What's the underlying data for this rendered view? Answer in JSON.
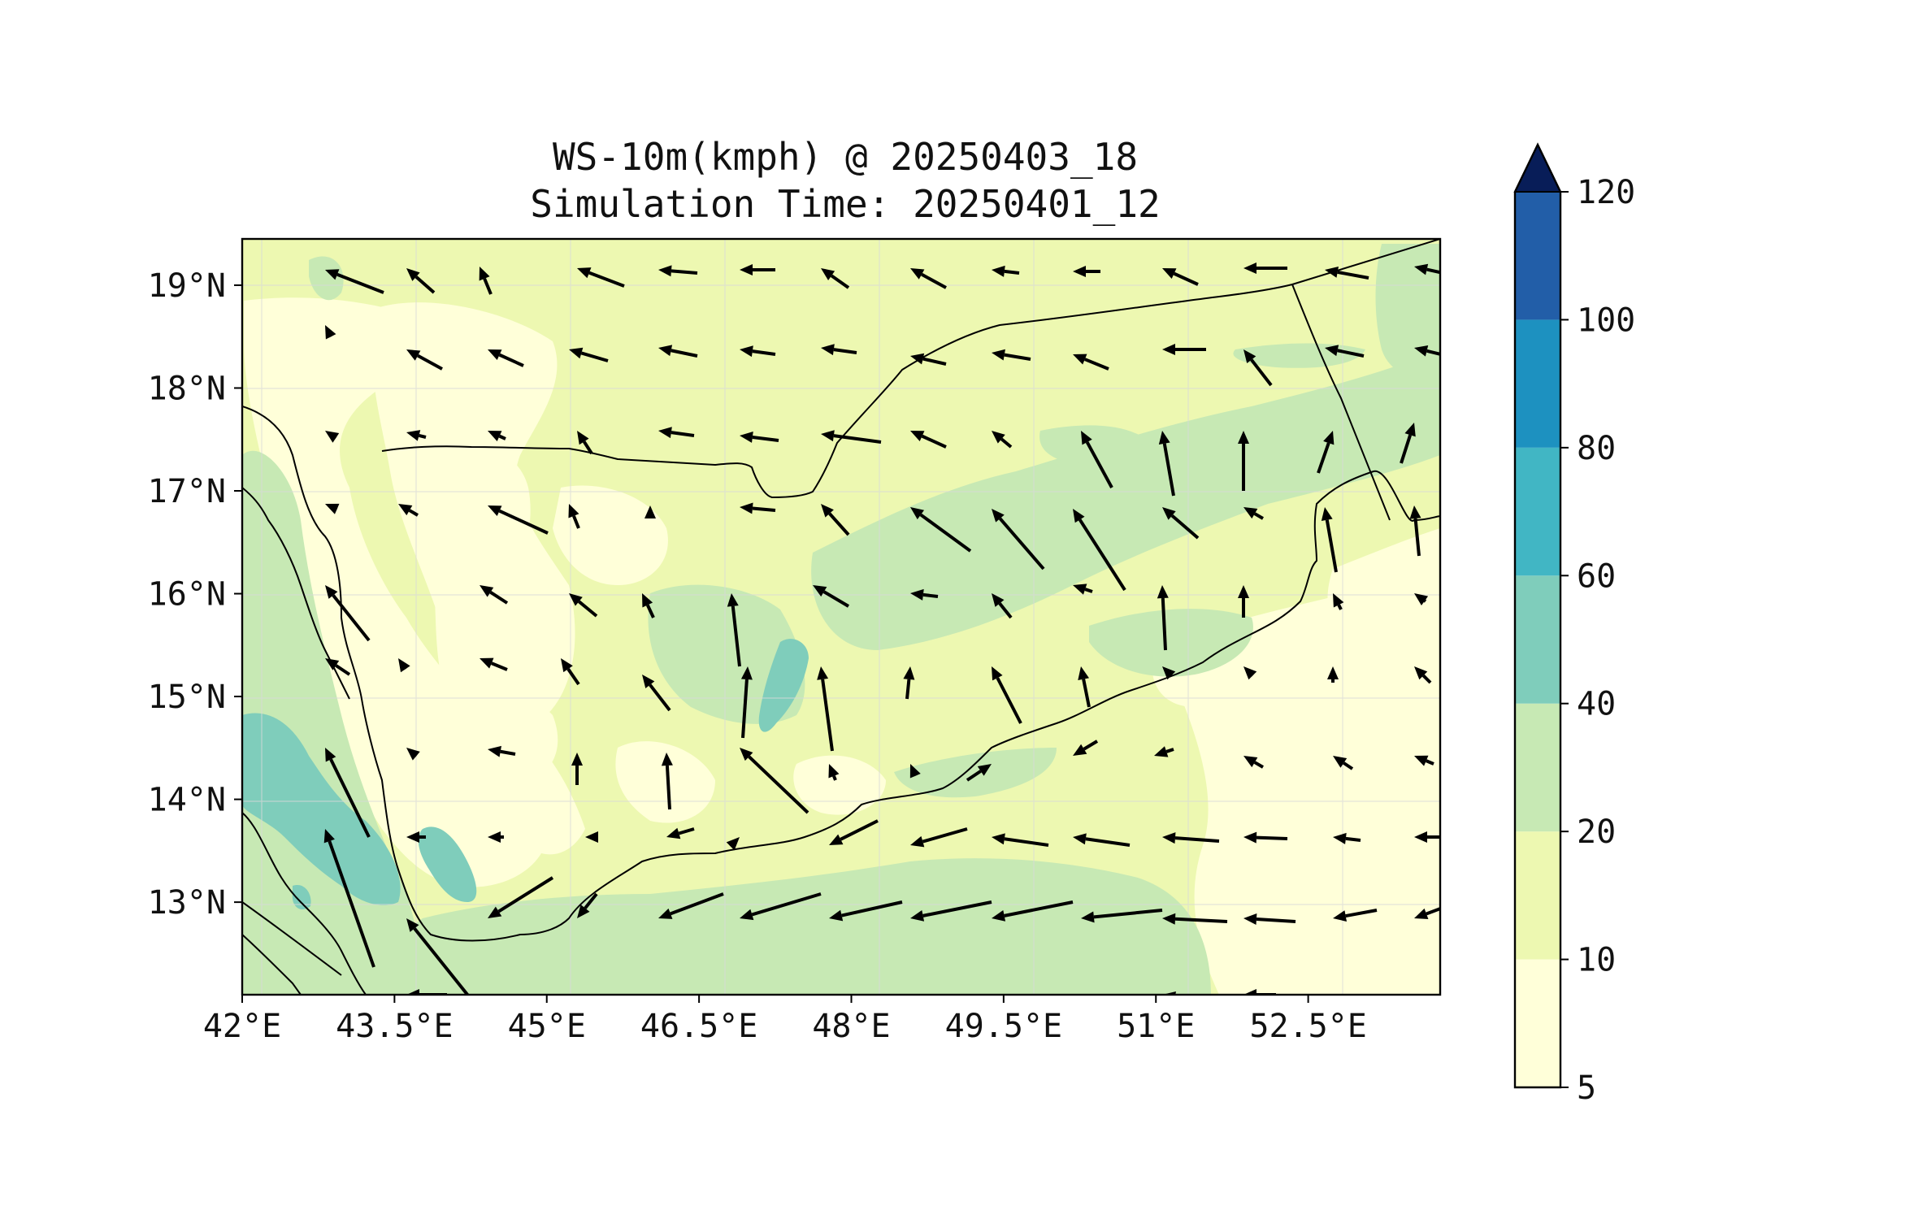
{
  "figure": {
    "title_line1": "WS-10m(kmph) @ 20250403_18",
    "title_line2": "Simulation Time: 20250401_12"
  },
  "map": {
    "lon_range": [
      42.0,
      53.8
    ],
    "lat_range": [
      12.1,
      19.45
    ],
    "x_ticks": [
      "42°E",
      "43.5°E",
      "45°E",
      "46.5°E",
      "48°E",
      "49.5°E",
      "51°E",
      "52.5°E"
    ],
    "x_tick_values": [
      42.0,
      43.5,
      45.0,
      46.5,
      48.0,
      49.5,
      51.0,
      52.5
    ],
    "y_ticks": [
      "19°N",
      "18°N",
      "17°N",
      "16°N",
      "15°N",
      "14°N",
      "13°N"
    ],
    "y_tick_values": [
      19,
      18,
      17,
      16,
      15,
      14,
      13
    ],
    "gridlines": true
  },
  "colorbar": {
    "labels": [
      "5",
      "10",
      "20",
      "40",
      "60",
      "80",
      "100",
      "120"
    ],
    "levels": [
      5,
      10,
      20,
      40,
      60,
      80,
      100,
      120
    ],
    "colors": [
      "#ffffd9",
      "#edf8b1",
      "#c7e9b4",
      "#7fcdbb",
      "#41b6c4",
      "#1d91c0",
      "#225ea8",
      "#253494"
    ],
    "extend_color": "#081d58",
    "extend": "max",
    "cmap": "YlGnBu"
  },
  "colors": {
    "very_light": "#ffffd9",
    "light": "#edf8b1",
    "green": "#c7e9b4",
    "teal": "#7fcdbb"
  },
  "icons": {
    "wind_vector": "wind-arrow-icon"
  }
}
